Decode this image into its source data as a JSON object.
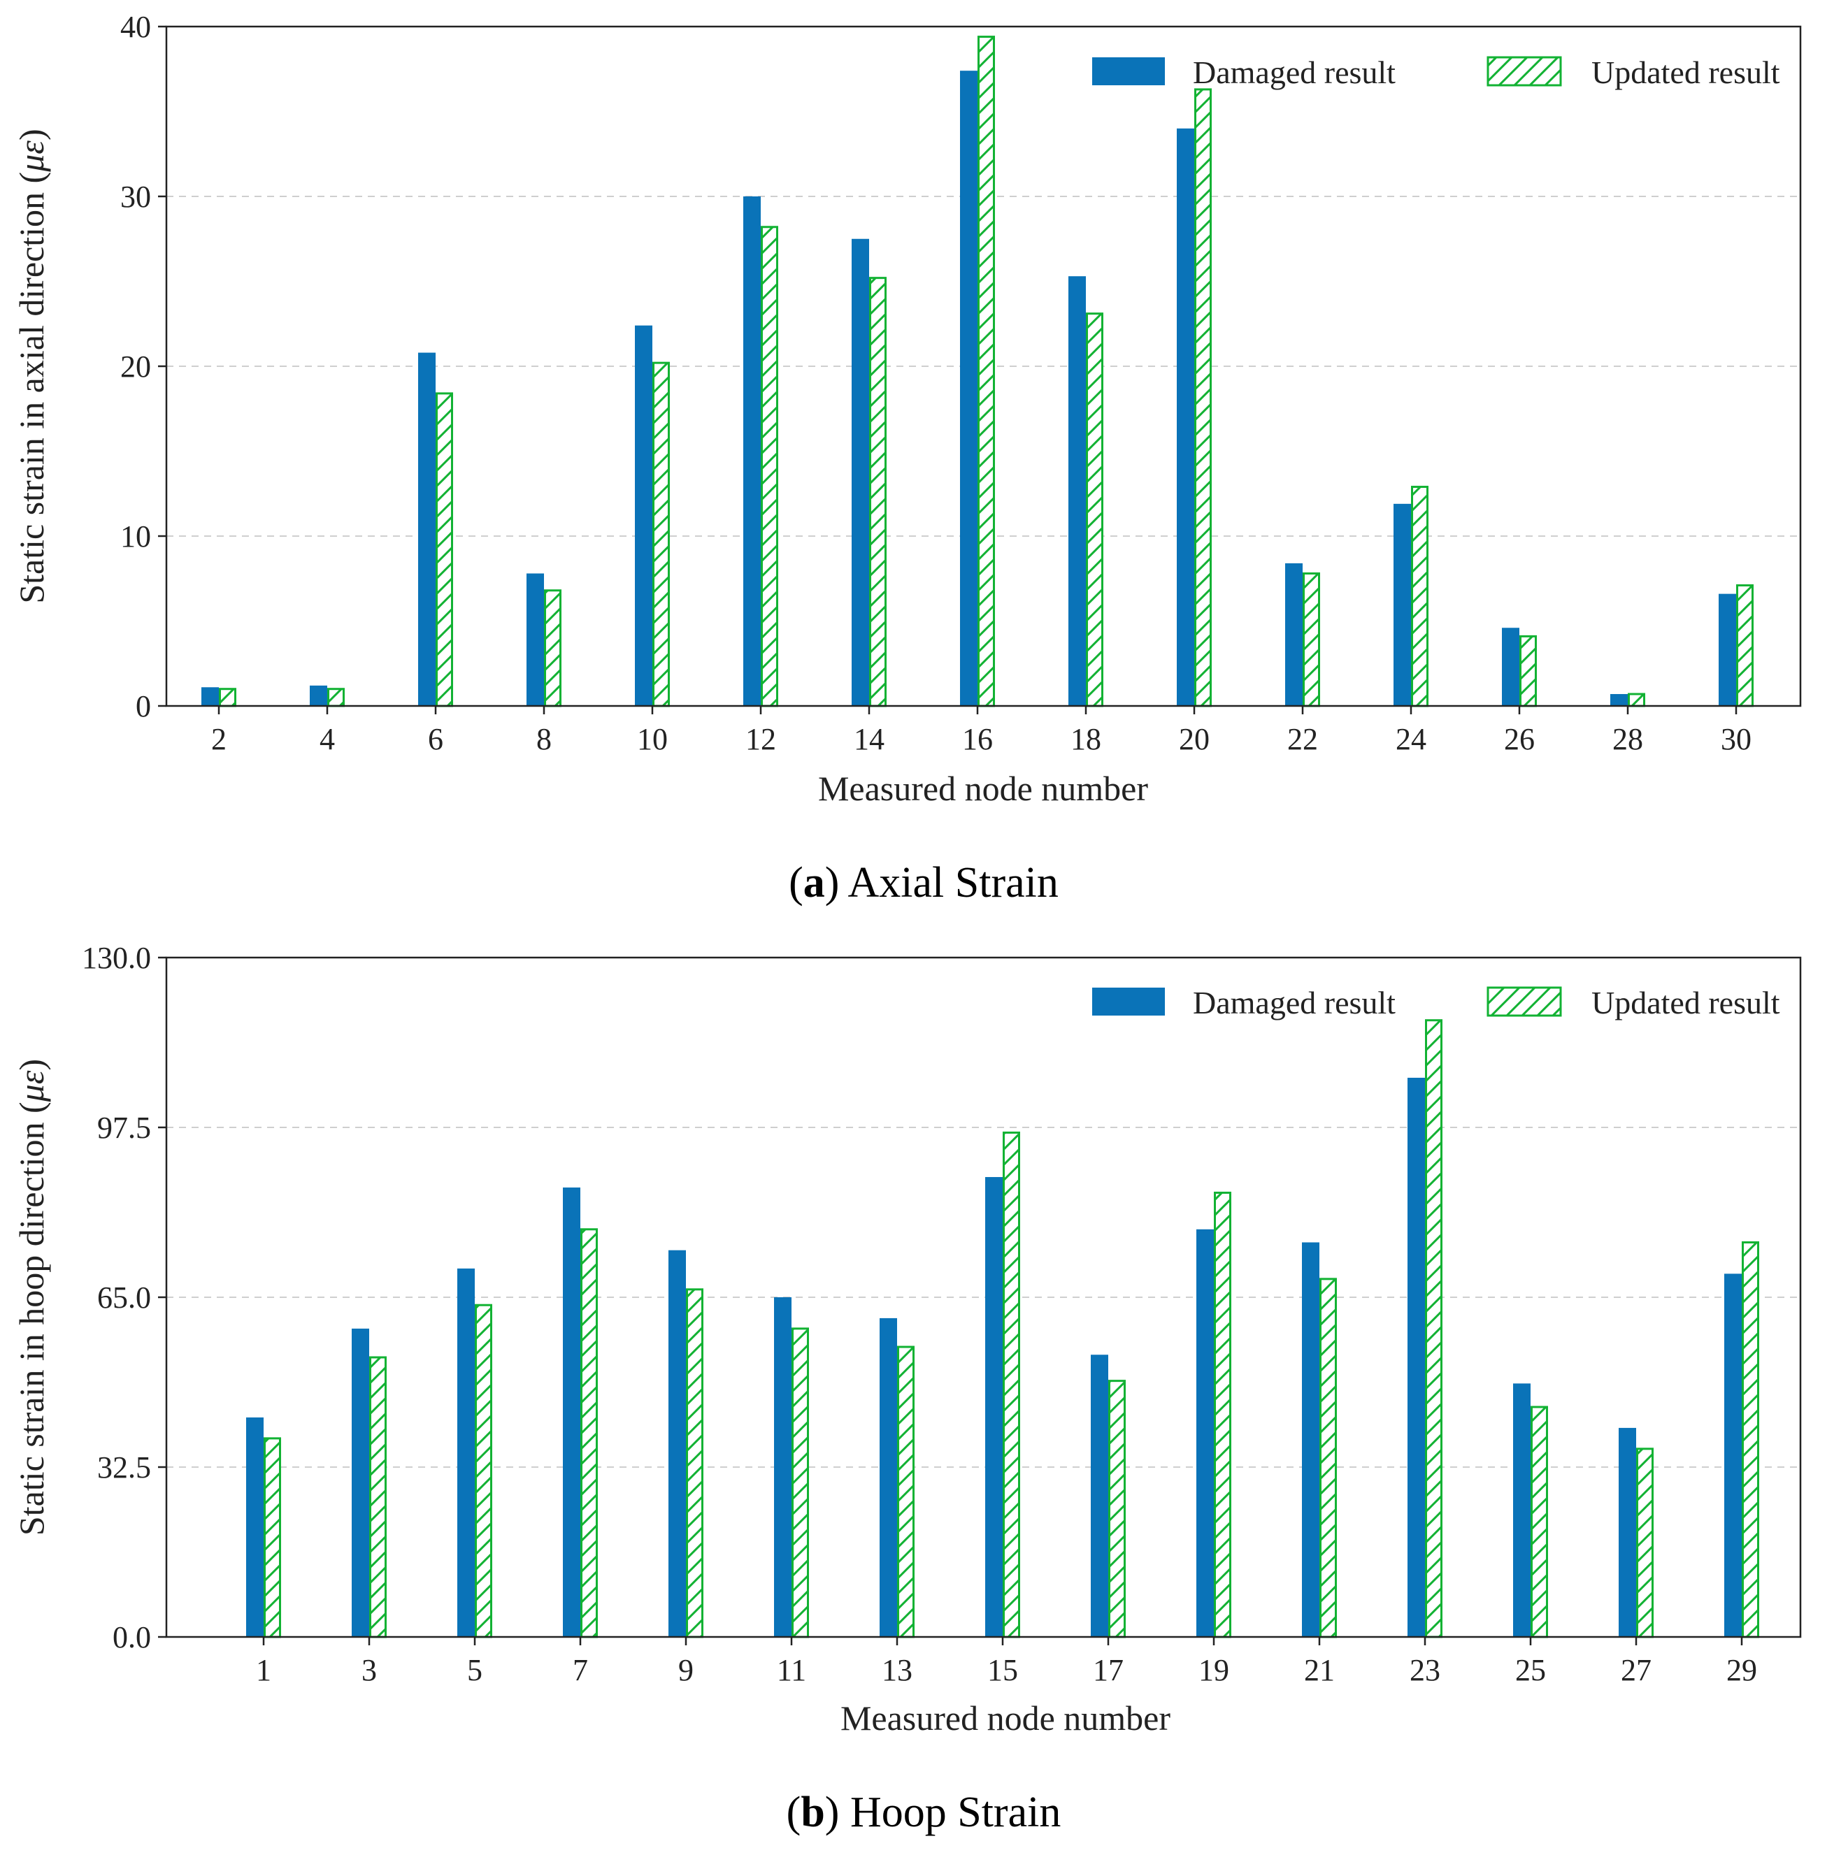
{
  "colors": {
    "damaged": "#0a73b8",
    "updated": "#12b233",
    "grid": "#cfcfcf",
    "axis": "#222222"
  },
  "chart_data": [
    {
      "type": "bar",
      "caption_letter": "a",
      "caption_text": "Axial Strain",
      "xlabel": "Measured node number",
      "ylabel_prefix": "Static strain in axial direction (",
      "ylabel_symbol": "με",
      "ylabel_suffix": ")",
      "ylim": [
        0,
        40
      ],
      "yticks": [
        0,
        10,
        20,
        30,
        40
      ],
      "ytick_labels": [
        "0",
        "10",
        "20",
        "30",
        "40"
      ],
      "grid": true,
      "legend_position": "top-right",
      "categories": [
        "2",
        "4",
        "6",
        "8",
        "10",
        "12",
        "14",
        "16",
        "18",
        "20",
        "22",
        "24",
        "26",
        "28",
        "30"
      ],
      "series": [
        {
          "name": "Damaged result",
          "style": "solid",
          "values": [
            1.1,
            1.2,
            20.8,
            7.8,
            22.4,
            30.0,
            27.5,
            37.4,
            25.3,
            34.0,
            8.4,
            11.9,
            4.6,
            0.7,
            6.6
          ]
        },
        {
          "name": "Updated result",
          "style": "hatched",
          "values": [
            1.0,
            1.0,
            18.4,
            6.8,
            20.2,
            28.2,
            25.2,
            39.4,
            23.1,
            36.3,
            7.8,
            12.9,
            4.1,
            0.7,
            7.1
          ]
        }
      ]
    },
    {
      "type": "bar",
      "caption_letter": "b",
      "caption_text": "Hoop Strain",
      "xlabel": "Measured node number",
      "ylabel_prefix": "Static strain in hoop direction (",
      "ylabel_symbol": "με",
      "ylabel_suffix": ")",
      "ylim": [
        0,
        130
      ],
      "yticks": [
        0,
        32.5,
        65,
        97.5,
        130
      ],
      "ytick_labels": [
        "0.0",
        "32.5",
        "65.0",
        "97.5",
        "130.0"
      ],
      "grid": true,
      "legend_position": "top-right",
      "categories": [
        "1",
        "3",
        "5",
        "7",
        "9",
        "11",
        "13",
        "15",
        "17",
        "19",
        "21",
        "23",
        "25",
        "27",
        "29"
      ],
      "series": [
        {
          "name": "Damaged result",
          "style": "solid",
          "values": [
            42.0,
            59.0,
            70.5,
            86.0,
            74.0,
            65.0,
            61.0,
            88.0,
            54.0,
            78.0,
            75.5,
            107.0,
            48.5,
            40.0,
            69.5
          ]
        },
        {
          "name": "Updated result",
          "style": "hatched",
          "values": [
            38.0,
            53.5,
            63.5,
            78.0,
            66.5,
            59.0,
            55.5,
            96.5,
            49.0,
            85.0,
            68.5,
            118.0,
            44.0,
            36.0,
            75.5
          ]
        }
      ]
    }
  ]
}
